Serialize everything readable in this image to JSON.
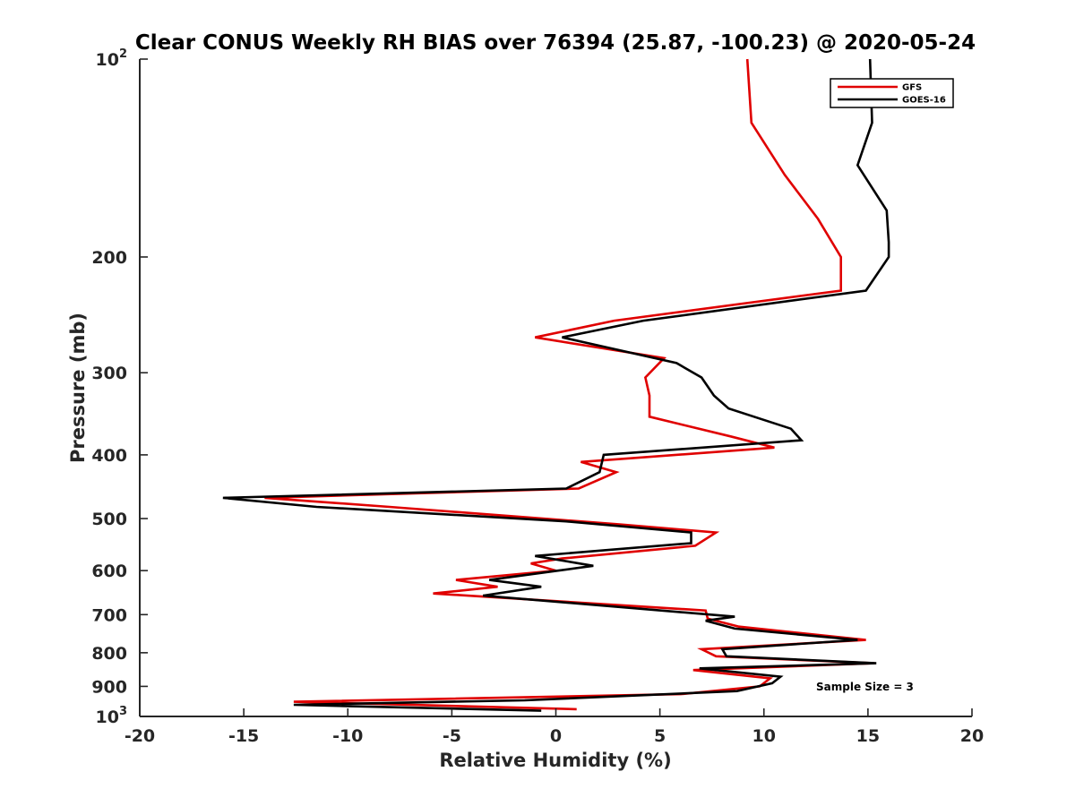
{
  "chart_data": {
    "type": "line",
    "title": "Clear CONUS Weekly RH BIAS over 76394 (25.87, -100.23) @ 2020-05-24",
    "xlabel": "Relative Humidity (%)",
    "ylabel": "Pressure (mb)",
    "xlim": [
      -20,
      20
    ],
    "ylim": [
      100,
      1000
    ],
    "y_scale": "log",
    "y_reversed": true,
    "x_ticks": [
      "-20",
      "-15",
      "-10",
      "-5",
      "0",
      "5",
      "10",
      "15",
      "20"
    ],
    "y_ticks": [
      {
        "value": 100,
        "base": "10",
        "exp": "2"
      },
      {
        "value": 200,
        "label": "200"
      },
      {
        "value": 300,
        "label": "300"
      },
      {
        "value": 400,
        "label": "400"
      },
      {
        "value": 500,
        "label": "500"
      },
      {
        "value": 600,
        "label": "600"
      },
      {
        "value": 700,
        "label": "700"
      },
      {
        "value": 800,
        "label": "800"
      },
      {
        "value": 900,
        "label": "900"
      },
      {
        "value": 1000,
        "base": "10",
        "exp": "3"
      }
    ],
    "grid": false,
    "legend_position": "top-right",
    "annotation": "Sample Size = 3",
    "series": [
      {
        "name": "GFS",
        "color": "#e00000",
        "points": [
          [
            9.2,
            100
          ],
          [
            9.4,
            125
          ],
          [
            11.0,
            150
          ],
          [
            12.6,
            175
          ],
          [
            13.7,
            200
          ],
          [
            13.7,
            225
          ],
          [
            2.8,
            250
          ],
          [
            -1.0,
            265
          ],
          [
            5.2,
            285
          ],
          [
            4.3,
            305
          ],
          [
            4.5,
            325
          ],
          [
            4.5,
            350
          ],
          [
            8.4,
            375
          ],
          [
            10.5,
            390
          ],
          [
            1.2,
            410
          ],
          [
            2.9,
            425
          ],
          [
            1.1,
            450
          ],
          [
            -14.0,
            465
          ],
          [
            -8.0,
            480
          ],
          [
            3.0,
            510
          ],
          [
            7.7,
            525
          ],
          [
            6.7,
            550
          ],
          [
            0.3,
            575
          ],
          [
            -1.2,
            585
          ],
          [
            0.0,
            600
          ],
          [
            -4.8,
            620
          ],
          [
            -2.8,
            635
          ],
          [
            -5.9,
            650
          ],
          [
            7.2,
            690
          ],
          [
            7.3,
            710
          ],
          [
            8.8,
            730
          ],
          [
            14.9,
            765
          ],
          [
            7.0,
            790
          ],
          [
            7.7,
            810
          ],
          [
            15.3,
            830
          ],
          [
            6.6,
            850
          ],
          [
            10.3,
            875
          ],
          [
            9.8,
            900
          ],
          [
            6.0,
            925
          ],
          [
            -12.6,
            950
          ],
          [
            1.0,
            975
          ]
        ]
      },
      {
        "name": "GOES-16",
        "color": "#000000",
        "points": [
          [
            15.1,
            100
          ],
          [
            15.2,
            125
          ],
          [
            14.5,
            145
          ],
          [
            15.9,
            170
          ],
          [
            16.0,
            190
          ],
          [
            16.0,
            200
          ],
          [
            14.9,
            225
          ],
          [
            4.2,
            250
          ],
          [
            0.3,
            265
          ],
          [
            5.8,
            290
          ],
          [
            7.0,
            305
          ],
          [
            7.6,
            325
          ],
          [
            8.3,
            340
          ],
          [
            11.3,
            365
          ],
          [
            11.8,
            380
          ],
          [
            2.3,
            400
          ],
          [
            2.1,
            425
          ],
          [
            0.5,
            450
          ],
          [
            -16.0,
            465
          ],
          [
            -11.5,
            480
          ],
          [
            0.5,
            505
          ],
          [
            6.5,
            525
          ],
          [
            6.5,
            545
          ],
          [
            -1.0,
            570
          ],
          [
            1.8,
            590
          ],
          [
            -3.2,
            620
          ],
          [
            -0.7,
            635
          ],
          [
            -3.5,
            655
          ],
          [
            8.6,
            705
          ],
          [
            7.2,
            715
          ],
          [
            8.6,
            735
          ],
          [
            14.5,
            765
          ],
          [
            8.0,
            790
          ],
          [
            8.2,
            810
          ],
          [
            15.4,
            830
          ],
          [
            6.9,
            845
          ],
          [
            10.8,
            870
          ],
          [
            10.4,
            890
          ],
          [
            8.7,
            915
          ],
          [
            -1.5,
            945
          ],
          [
            -12.6,
            960
          ],
          [
            -0.7,
            980
          ]
        ]
      }
    ]
  }
}
